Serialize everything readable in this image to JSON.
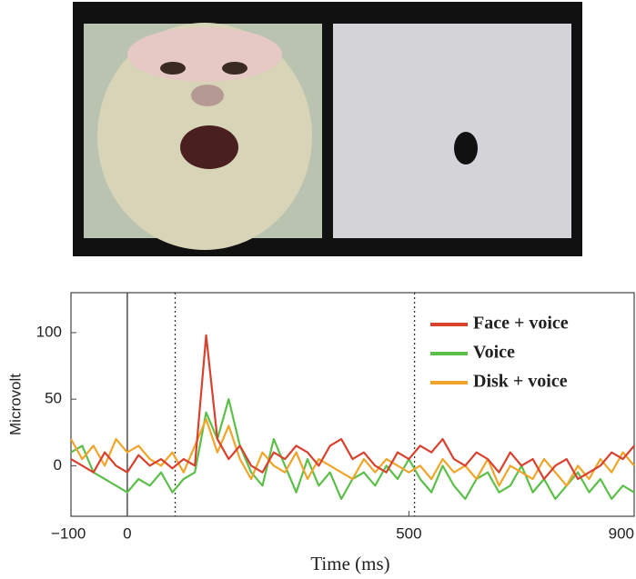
{
  "chart_data": {
    "type": "line",
    "xlabel": "Time (ms)",
    "ylabel": "Microvolt",
    "x": [
      -100,
      -80,
      -60,
      -40,
      -20,
      0,
      20,
      40,
      60,
      80,
      100,
      120,
      140,
      160,
      180,
      200,
      220,
      240,
      260,
      280,
      300,
      320,
      340,
      360,
      380,
      400,
      420,
      440,
      460,
      480,
      500,
      520,
      540,
      560,
      580,
      600,
      620,
      640,
      660,
      680,
      700,
      720,
      740,
      760,
      780,
      800,
      820,
      840,
      860,
      880,
      900
    ],
    "series": [
      {
        "name": "Face + voice",
        "color": "#d9412f",
        "values": [
          5,
          0,
          -5,
          10,
          0,
          -5,
          8,
          0,
          5,
          -2,
          5,
          0,
          98,
          20,
          5,
          15,
          0,
          -5,
          10,
          5,
          15,
          10,
          0,
          15,
          20,
          5,
          10,
          0,
          -5,
          10,
          5,
          15,
          10,
          20,
          5,
          0,
          10,
          5,
          -5,
          10,
          0,
          5,
          -10,
          0,
          5,
          -10,
          -5,
          0,
          10,
          5,
          15
        ]
      },
      {
        "name": "Voice",
        "color": "#5cbf4a",
        "values": [
          10,
          15,
          -5,
          -10,
          -15,
          -20,
          -10,
          -15,
          -5,
          -20,
          -10,
          -5,
          40,
          20,
          50,
          15,
          -5,
          -15,
          20,
          0,
          -20,
          5,
          -15,
          -5,
          -25,
          -10,
          -5,
          -15,
          0,
          -10,
          5,
          -10,
          -20,
          0,
          -15,
          -25,
          -10,
          -5,
          -20,
          -15,
          0,
          -20,
          -10,
          -25,
          -15,
          -5,
          -20,
          -10,
          -25,
          -15,
          -20
        ]
      },
      {
        "name": "Disk + voice",
        "color": "#f0a52a",
        "values": [
          20,
          5,
          15,
          0,
          20,
          10,
          15,
          5,
          0,
          10,
          -5,
          15,
          35,
          10,
          30,
          5,
          -10,
          10,
          0,
          -5,
          10,
          -10,
          5,
          0,
          -5,
          -10,
          5,
          -5,
          5,
          0,
          -5,
          0,
          -10,
          5,
          -5,
          0,
          -10,
          5,
          -15,
          0,
          -5,
          -10,
          5,
          -5,
          -15,
          0,
          -10,
          5,
          -5,
          10,
          0
        ]
      }
    ],
    "xlim": [
      -100,
      900
    ],
    "xticks": [
      {
        "value": -100,
        "label": "−100"
      },
      0,
      500,
      900
    ],
    "ylim": [
      -38,
      130
    ],
    "yticks": [
      0,
      50,
      100
    ],
    "vlines": [
      {
        "x": 0,
        "style": "solid"
      },
      {
        "x": 85,
        "style": "dotted"
      },
      {
        "x": 510,
        "style": "dotted"
      }
    ],
    "legend": "upper right"
  }
}
